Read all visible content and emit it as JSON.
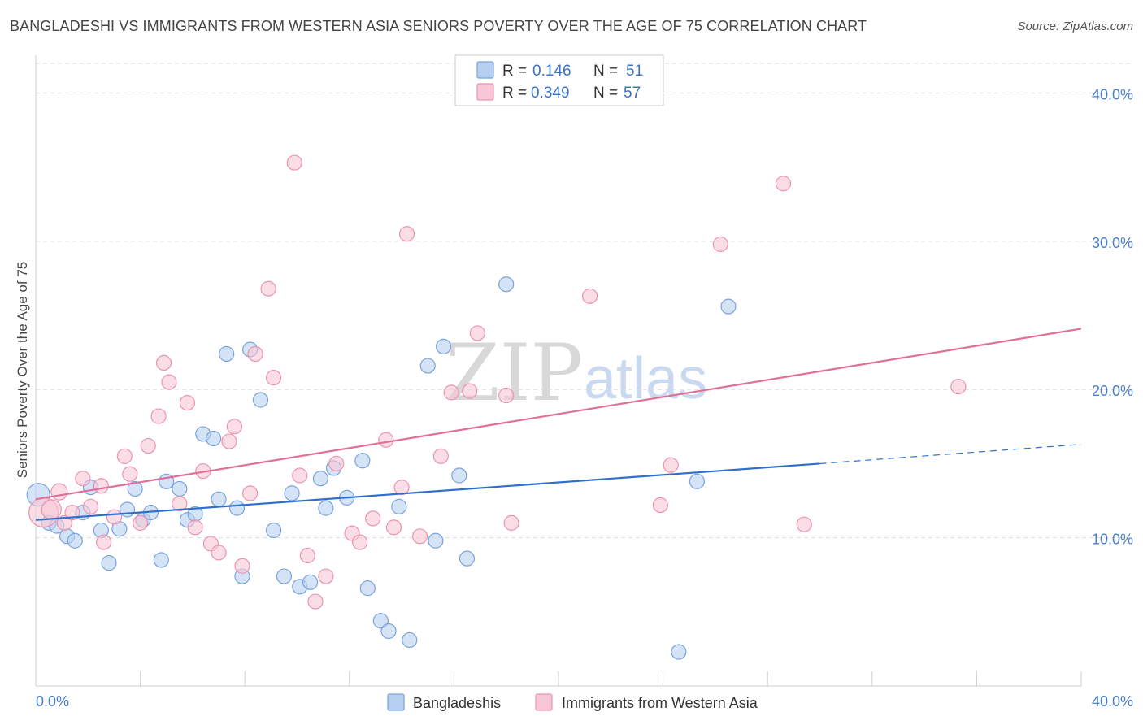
{
  "title": "BANGLADESHI VS IMMIGRANTS FROM WESTERN ASIA SENIORS POVERTY OVER THE AGE OF 75 CORRELATION CHART",
  "source": "Source: ZipAtlas.com",
  "watermark": {
    "zip": "ZIP",
    "atlas": "atlas"
  },
  "legend": {
    "r_label": "R =",
    "n_label": "N =",
    "rows": [
      {
        "r": "0.146",
        "n": "51"
      },
      {
        "r": "0.349",
        "n": "57"
      }
    ]
  },
  "bottom_legend": [
    "Bangladeshis",
    "Immigrants from Western Asia"
  ],
  "colors": {
    "blue_fill": "#b8d0f0",
    "blue_stroke": "#7aa3dc",
    "blue_line": "#2f6fcc",
    "pink_fill": "#f8c6d6",
    "pink_stroke": "#eb94b0",
    "pink_line": "#e0709a",
    "tick_text": "#4a7fcc",
    "grid": "#dddddd"
  },
  "chart_data": {
    "type": "scatter",
    "title": "BANGLADESHI VS IMMIGRANTS FROM WESTERN ASIA SENIORS POVERTY OVER THE AGE OF 75 CORRELATION CHART",
    "xlabel": "",
    "ylabel": "Seniors Poverty Over the Age of 75",
    "xlim": [
      0,
      40
    ],
    "ylim": [
      0,
      42
    ],
    "x_tick_labels": [
      "0.0%",
      "40.0%"
    ],
    "y_ticks": [
      10,
      20,
      30,
      40
    ],
    "y_tick_labels": [
      "10.0%",
      "20.0%",
      "30.0%",
      "40.0%"
    ],
    "grid": "horizontal dashed",
    "legend_position": "top-center",
    "series": [
      {
        "name": "Bangladeshis",
        "r": 0.146,
        "n": 51,
        "trend": {
          "x0": 0,
          "y0": 11.2,
          "x1": 30,
          "y1": 15.0,
          "dashed_to_x": 40,
          "dashed_to_y": 16.3
        },
        "points": [
          [
            0.1,
            12.9,
            14
          ],
          [
            0.5,
            11.0,
            9
          ],
          [
            0.8,
            10.8,
            9
          ],
          [
            1.2,
            10.1,
            9
          ],
          [
            1.5,
            9.8,
            9
          ],
          [
            1.8,
            11.7,
            9
          ],
          [
            2.1,
            13.4,
            9
          ],
          [
            2.5,
            10.5,
            9
          ],
          [
            2.8,
            8.3,
            9
          ],
          [
            3.2,
            10.6,
            9
          ],
          [
            3.5,
            11.9,
            9
          ],
          [
            3.8,
            13.3,
            9
          ],
          [
            4.1,
            11.2,
            9
          ],
          [
            4.4,
            11.7,
            9
          ],
          [
            4.8,
            8.5,
            9
          ],
          [
            5.0,
            13.8,
            9
          ],
          [
            5.5,
            13.3,
            9
          ],
          [
            5.8,
            11.2,
            9
          ],
          [
            6.1,
            11.6,
            9
          ],
          [
            6.4,
            17.0,
            9
          ],
          [
            6.8,
            16.7,
            9
          ],
          [
            7.0,
            12.6,
            9
          ],
          [
            7.3,
            22.4,
            9
          ],
          [
            7.7,
            12.0,
            9
          ],
          [
            7.9,
            7.4,
            9
          ],
          [
            8.2,
            22.7,
            9
          ],
          [
            8.6,
            19.3,
            9
          ],
          [
            9.1,
            10.5,
            9
          ],
          [
            9.5,
            7.4,
            9
          ],
          [
            9.8,
            13.0,
            9
          ],
          [
            10.1,
            6.7,
            9
          ],
          [
            10.5,
            7.0,
            9
          ],
          [
            10.9,
            14.0,
            9
          ],
          [
            11.1,
            12.0,
            9
          ],
          [
            11.4,
            14.7,
            9
          ],
          [
            11.9,
            12.7,
            9
          ],
          [
            12.5,
            15.2,
            9
          ],
          [
            12.7,
            6.6,
            9
          ],
          [
            13.2,
            4.4,
            9
          ],
          [
            13.5,
            3.7,
            9
          ],
          [
            13.9,
            12.1,
            9
          ],
          [
            14.3,
            3.1,
            9
          ],
          [
            15.0,
            21.6,
            9
          ],
          [
            15.3,
            9.8,
            9
          ],
          [
            15.6,
            22.9,
            9
          ],
          [
            16.2,
            14.2,
            9
          ],
          [
            16.5,
            8.6,
            9
          ],
          [
            18.0,
            27.1,
            9
          ],
          [
            24.6,
            2.3,
            9
          ],
          [
            25.3,
            13.8,
            9
          ],
          [
            26.5,
            25.6,
            9
          ]
        ]
      },
      {
        "name": "Immigrants from Western Asia",
        "r": 0.349,
        "n": 57,
        "trend": {
          "x0": 0,
          "y0": 12.6,
          "x1": 40,
          "y1": 24.1
        },
        "points": [
          [
            0.3,
            11.7,
            18
          ],
          [
            0.6,
            11.9,
            12
          ],
          [
            0.9,
            13.1,
            10
          ],
          [
            1.1,
            11.0,
            9
          ],
          [
            1.4,
            11.7,
            9
          ],
          [
            1.8,
            14.0,
            9
          ],
          [
            2.1,
            12.1,
            9
          ],
          [
            2.5,
            13.5,
            9
          ],
          [
            2.6,
            9.7,
            9
          ],
          [
            3.0,
            11.4,
            9
          ],
          [
            3.4,
            15.5,
            9
          ],
          [
            3.6,
            14.3,
            9
          ],
          [
            4.0,
            11.0,
            9
          ],
          [
            4.3,
            16.2,
            9
          ],
          [
            4.7,
            18.2,
            9
          ],
          [
            4.9,
            21.8,
            9
          ],
          [
            5.1,
            20.5,
            9
          ],
          [
            5.5,
            12.3,
            9
          ],
          [
            5.8,
            19.1,
            9
          ],
          [
            6.1,
            10.7,
            9
          ],
          [
            6.4,
            14.5,
            9
          ],
          [
            6.7,
            9.6,
            9
          ],
          [
            7.0,
            9.0,
            9
          ],
          [
            7.4,
            16.5,
            9
          ],
          [
            7.6,
            17.5,
            9
          ],
          [
            7.9,
            8.1,
            9
          ],
          [
            8.2,
            13.0,
            9
          ],
          [
            8.4,
            22.4,
            9
          ],
          [
            8.9,
            26.8,
            9
          ],
          [
            9.1,
            20.8,
            9
          ],
          [
            9.9,
            35.3,
            9
          ],
          [
            10.1,
            14.2,
            9
          ],
          [
            10.4,
            8.8,
            9
          ],
          [
            10.7,
            5.7,
            9
          ],
          [
            11.1,
            7.4,
            9
          ],
          [
            11.5,
            15.0,
            9
          ],
          [
            12.1,
            10.3,
            9
          ],
          [
            12.4,
            9.7,
            9
          ],
          [
            12.9,
            11.3,
            9
          ],
          [
            13.4,
            16.6,
            9
          ],
          [
            13.7,
            10.7,
            9
          ],
          [
            14.0,
            13.4,
            9
          ],
          [
            14.2,
            30.5,
            9
          ],
          [
            14.7,
            10.1,
            9
          ],
          [
            15.5,
            15.5,
            9
          ],
          [
            15.9,
            19.8,
            9
          ],
          [
            16.6,
            19.9,
            9
          ],
          [
            16.9,
            23.8,
            9
          ],
          [
            18.0,
            19.6,
            9
          ],
          [
            18.2,
            11.0,
            9
          ],
          [
            21.2,
            26.3,
            9
          ],
          [
            23.9,
            12.2,
            9
          ],
          [
            24.3,
            14.9,
            9
          ],
          [
            26.2,
            29.8,
            9
          ],
          [
            28.6,
            33.9,
            9
          ],
          [
            29.4,
            10.9,
            9
          ],
          [
            35.3,
            20.2,
            9
          ]
        ]
      }
    ]
  }
}
